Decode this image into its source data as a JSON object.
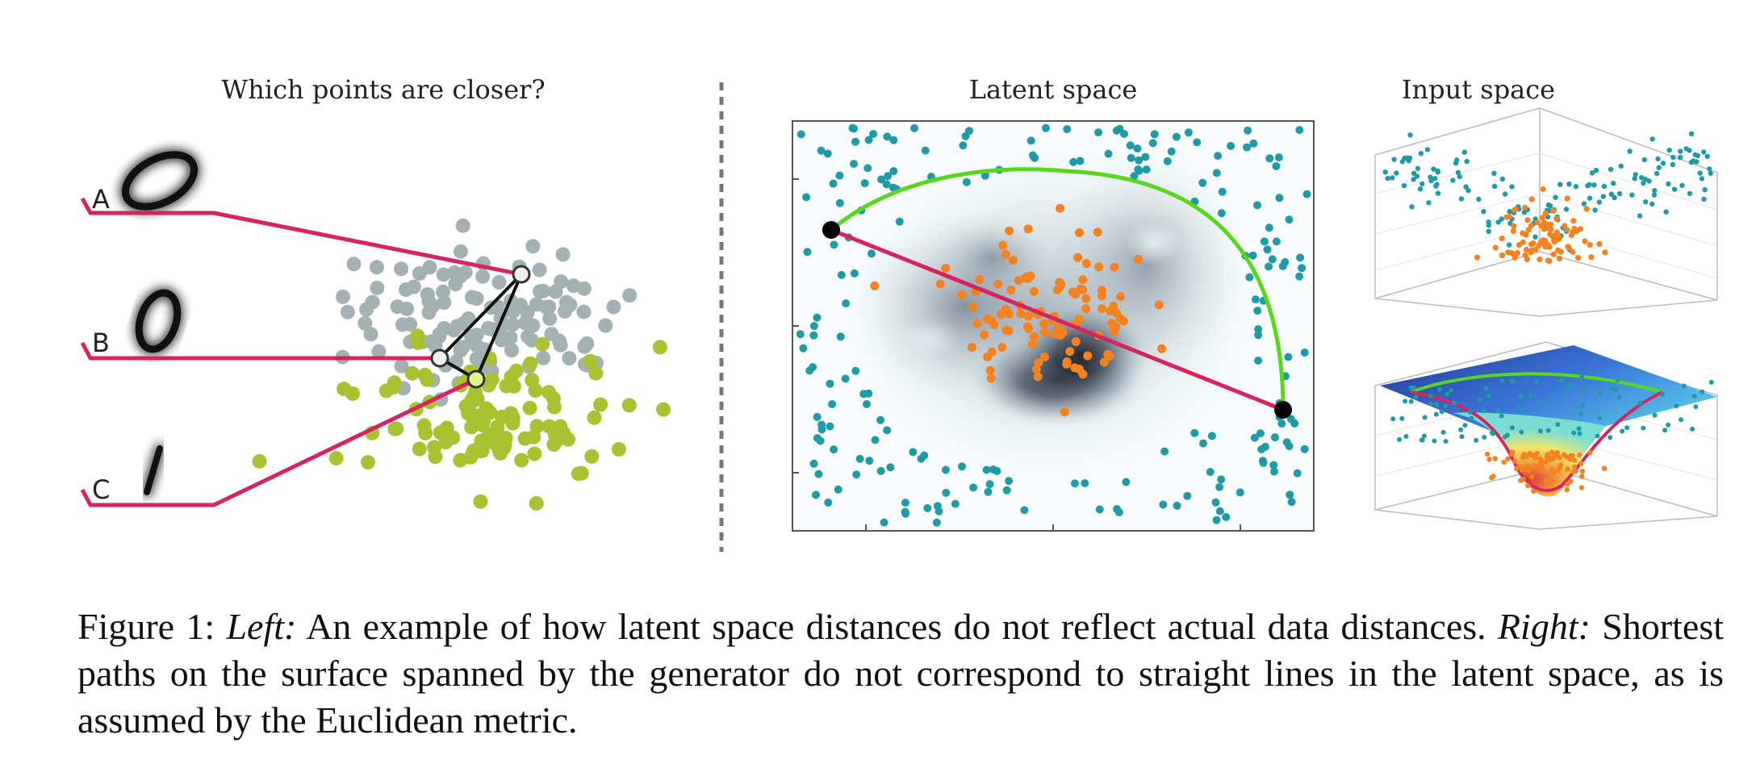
{
  "panels": {
    "left_title": "Which points are closer?",
    "latent_title": "Latent space",
    "input_title": "Input space"
  },
  "left_points": {
    "labels": [
      "A",
      "B",
      "C"
    ]
  },
  "caption": {
    "label": "Figure 1:",
    "left_em": "Left:",
    "left_text": " An example of how latent space distances do not reflect actual data distances. ",
    "right_em": "Right:",
    "right_text": " Shortest paths on the surface spanned by the generator do not correspond to straight lines in the latent space, as is assumed by the Euclidean metric."
  },
  "colors": {
    "gray_cluster": "#a3b1b3",
    "green_cluster": "#a8c232",
    "teal_points": "#1f9aa6",
    "orange_points": "#f58220",
    "euclid_line": "#d6245e",
    "geodesic_curve": "#5ad61f"
  }
}
